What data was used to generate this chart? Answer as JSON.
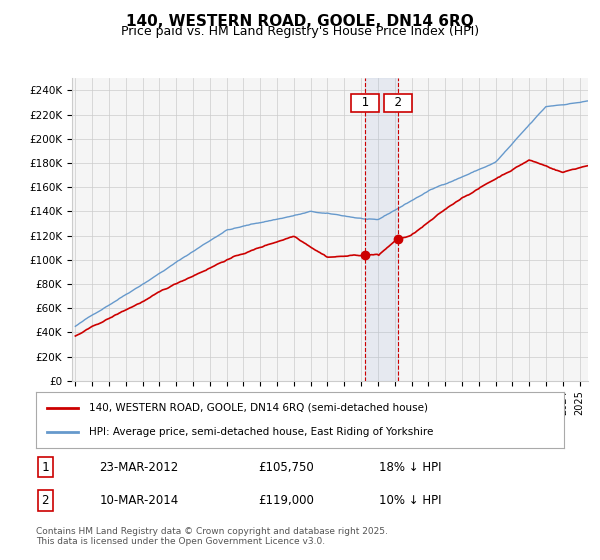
{
  "title": "140, WESTERN ROAD, GOOLE, DN14 6RQ",
  "subtitle": "Price paid vs. HM Land Registry's House Price Index (HPI)",
  "ylabel_ticks": [
    "£0",
    "£20K",
    "£40K",
    "£60K",
    "£80K",
    "£100K",
    "£120K",
    "£140K",
    "£160K",
    "£180K",
    "£200K",
    "£220K",
    "£240K"
  ],
  "ytick_values": [
    0,
    20000,
    40000,
    60000,
    80000,
    100000,
    120000,
    140000,
    160000,
    180000,
    200000,
    220000,
    240000
  ],
  "ylim": [
    0,
    250000
  ],
  "xstart_year": 1995,
  "xend_year": 2025,
  "legend1_label": "140, WESTERN ROAD, GOOLE, DN14 6RQ (semi-detached house)",
  "legend2_label": "HPI: Average price, semi-detached house, East Riding of Yorkshire",
  "line1_color": "#cc0000",
  "line2_color": "#6699cc",
  "annotation1_num": "1",
  "annotation1_date": "23-MAR-2012",
  "annotation1_price": "£105,750",
  "annotation1_hpi": "18% ↓ HPI",
  "annotation1_year": 2012.22,
  "annotation2_num": "2",
  "annotation2_date": "10-MAR-2014",
  "annotation2_price": "£119,000",
  "annotation2_hpi": "10% ↓ HPI",
  "annotation2_year": 2014.19,
  "vline1_color": "#cc0000",
  "vline2_color": "#cc0000",
  "shade_color": "#aabbdd",
  "footer": "Contains HM Land Registry data © Crown copyright and database right 2025.\nThis data is licensed under the Open Government Licence v3.0.",
  "bg_color": "#ffffff",
  "plot_bg_color": "#f5f5f5"
}
